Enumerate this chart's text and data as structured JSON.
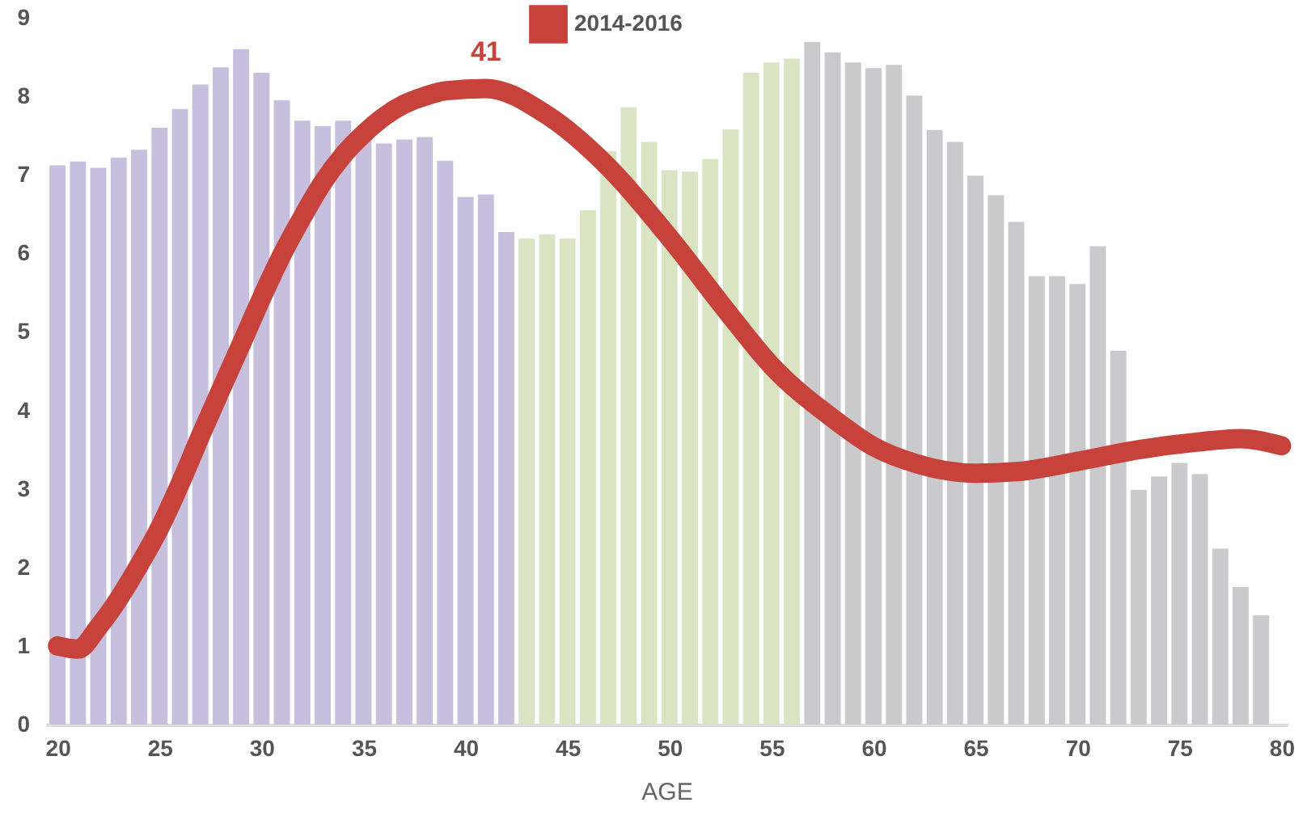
{
  "chart_data": {
    "type": "bar",
    "xlabel": "AGE",
    "x": [
      20,
      21,
      22,
      23,
      24,
      25,
      26,
      27,
      28,
      29,
      30,
      31,
      32,
      33,
      34,
      35,
      36,
      37,
      38,
      39,
      40,
      41,
      42,
      43,
      44,
      45,
      46,
      47,
      48,
      49,
      50,
      51,
      52,
      53,
      54,
      55,
      56,
      57,
      58,
      59,
      60,
      61,
      62,
      63,
      64,
      65,
      66,
      67,
      68,
      69,
      70,
      71,
      72,
      73,
      74,
      75,
      76,
      77,
      78,
      79
    ],
    "values": [
      7.12,
      7.17,
      7.09,
      7.22,
      7.32,
      7.6,
      7.84,
      8.15,
      8.37,
      8.6,
      8.3,
      7.95,
      7.69,
      7.62,
      7.69,
      7.45,
      7.4,
      7.45,
      7.48,
      7.18,
      6.72,
      6.75,
      6.27,
      6.19,
      6.24,
      6.19,
      6.55,
      7.3,
      7.86,
      7.42,
      7.06,
      7.04,
      7.2,
      7.58,
      8.3,
      8.43,
      8.48,
      8.69,
      8.56,
      8.43,
      8.36,
      8.4,
      8.01,
      7.57,
      7.42,
      6.99,
      6.74,
      6.4,
      5.71,
      5.71,
      5.61,
      6.09,
      4.76,
      2.99,
      3.16,
      3.33,
      3.19,
      2.24,
      1.75,
      1.39
    ],
    "colors": [
      "#c6bfde",
      "#c6bfde",
      "#c6bfde",
      "#c6bfde",
      "#c6bfde",
      "#c6bfde",
      "#c6bfde",
      "#c6bfde",
      "#c6bfde",
      "#c6bfde",
      "#c6bfde",
      "#c6bfde",
      "#c6bfde",
      "#c6bfde",
      "#c6bfde",
      "#c6bfde",
      "#c6bfde",
      "#c6bfde",
      "#c6bfde",
      "#c6bfde",
      "#c6bfde",
      "#c6bfde",
      "#c6bfde",
      "#dae4c3",
      "#dae4c3",
      "#dae4c3",
      "#dae4c3",
      "#dae4c3",
      "#dae4c3",
      "#dae4c3",
      "#dae4c3",
      "#dae4c3",
      "#dae4c3",
      "#dae4c3",
      "#dae4c3",
      "#dae4c3",
      "#dae4c3",
      "#cacacc",
      "#cacacc",
      "#cacacc",
      "#cacacc",
      "#cacacc",
      "#cacacc",
      "#cacacc",
      "#cacacc",
      "#cacacc",
      "#cacacc",
      "#cacacc",
      "#cacacc",
      "#cacacc",
      "#cacacc",
      "#cacacc",
      "#cacacc",
      "#cacacc",
      "#cacacc",
      "#cacacc",
      "#cacacc",
      "#cacacc",
      "#cacacc",
      "#cacacc"
    ],
    "series": [
      {
        "name": "2014-2016",
        "type": "line",
        "color": "#c8423c",
        "x": [
          20,
          21,
          22,
          23,
          24,
          25,
          26,
          27,
          28,
          29,
          30,
          31,
          32,
          33,
          34,
          35,
          36,
          37,
          38,
          39,
          41,
          44,
          47,
          50,
          53,
          55,
          58,
          60,
          62,
          65,
          67,
          70,
          73,
          76,
          78,
          80
        ],
        "values": [
          1.0,
          0.96,
          1.24,
          1.6,
          2.03,
          2.5,
          3.06,
          3.67,
          4.26,
          4.84,
          5.43,
          5.98,
          6.46,
          6.9,
          7.25,
          7.52,
          7.74,
          7.9,
          8.0,
          8.07,
          8.1,
          7.76,
          7.1,
          6.2,
          5.2,
          4.57,
          3.9,
          3.54,
          3.33,
          3.2,
          3.22,
          3.35,
          3.5,
          3.6,
          3.64,
          3.55
        ]
      }
    ],
    "annotations": [
      {
        "text": "41",
        "x": 41,
        "y": 8.1
      }
    ],
    "xlim": [
      19.4,
      80.3
    ],
    "xticks": [
      20,
      25,
      30,
      35,
      40,
      45,
      50,
      55,
      60,
      65,
      70,
      75,
      80
    ],
    "ylim": [
      0,
      9
    ],
    "yticks": [
      0,
      1,
      2,
      3,
      4,
      5,
      6,
      7,
      8,
      9
    ],
    "legend": "top",
    "grid": false
  }
}
